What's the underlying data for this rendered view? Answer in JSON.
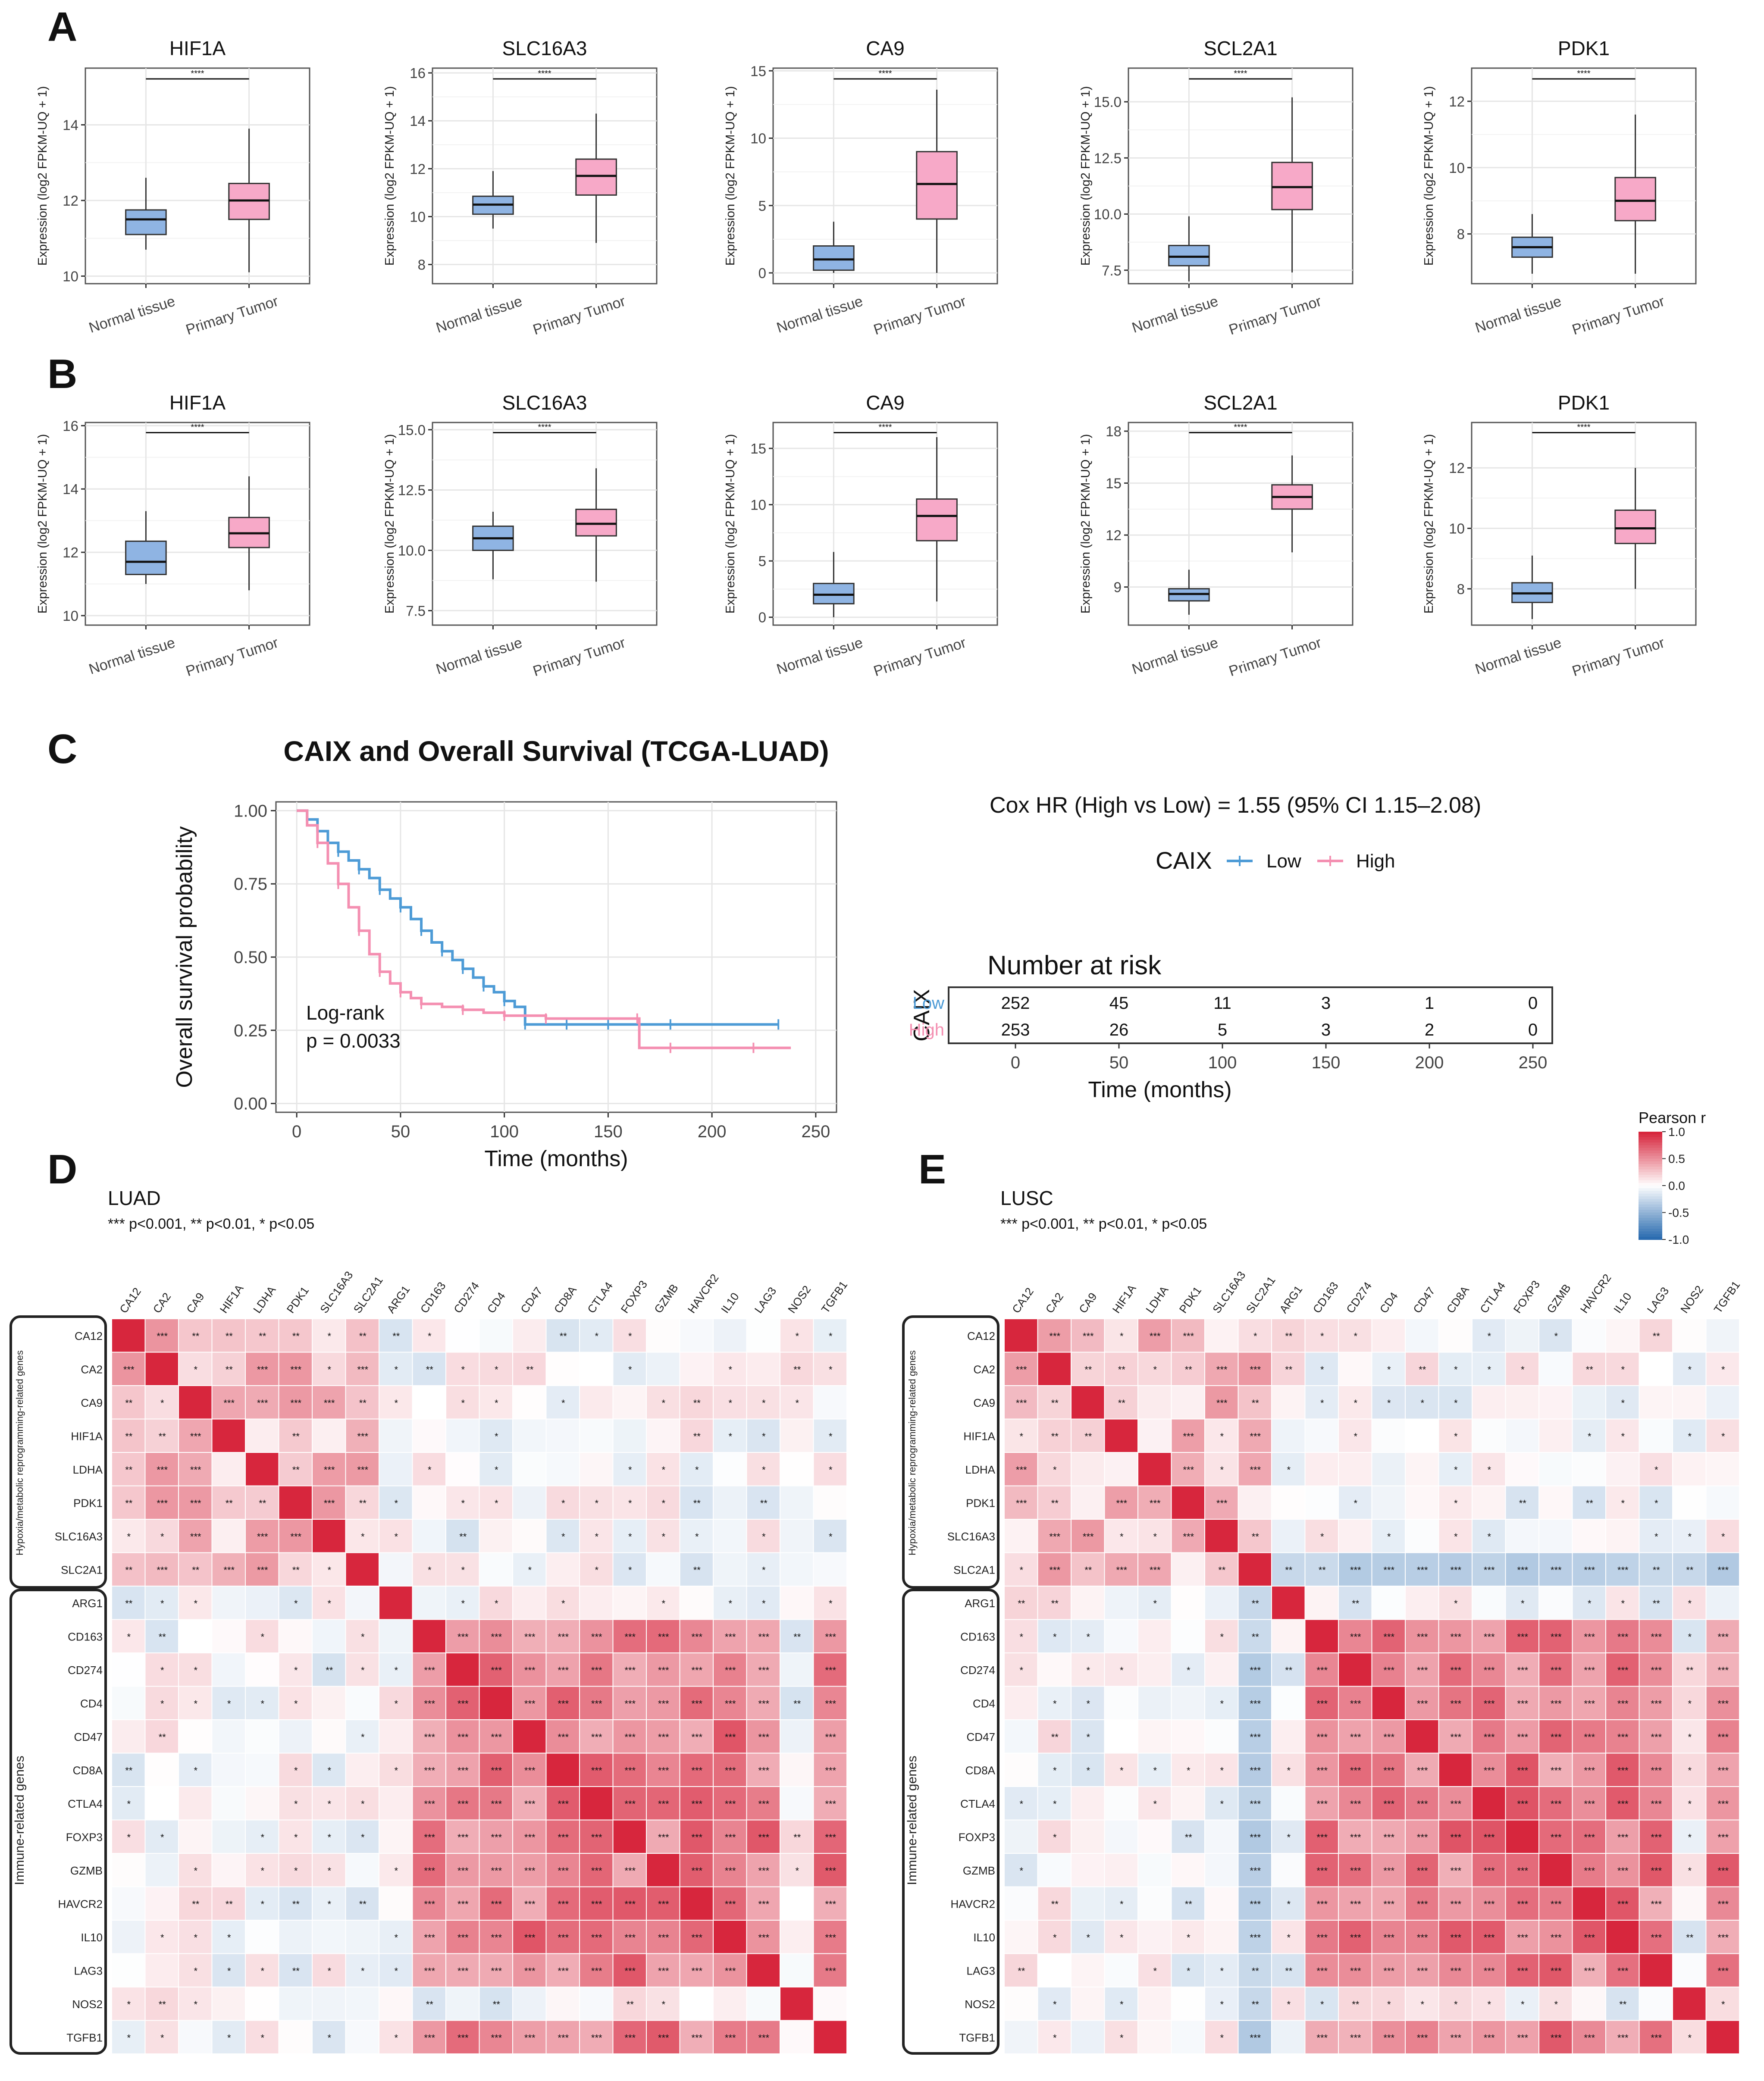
{
  "panel_letters": [
    "A",
    "B",
    "C",
    "D",
    "E"
  ],
  "box_ylabel": "Expression (log2 FPKM-UQ + 1)",
  "box_groups": [
    "Normal tissue",
    "Primary Tumor"
  ],
  "sig_label": "****",
  "colors": {
    "normal": "#8fb4e3",
    "tumor": "#f7a9c8",
    "low": "#4d9bd6",
    "high": "#f48fb1",
    "heat_pos": "#d7263d",
    "heat_neg": "#2b6cb0",
    "grid": "#e6e6e6"
  },
  "survival": {
    "title": "CAIX and Overall Survival (TCGA-LUAD)",
    "ylabel": "Overall survival probability",
    "xlabel": "Time (months)",
    "logrank": "Log-rank",
    "pvalue": "p = 0.0033",
    "cox": "Cox HR (High vs Low) = 1.55 (95% CI 1.15–2.08)",
    "legend_title": "CAIX",
    "legend_low": "Low",
    "legend_high": "High",
    "risk_title": "Number at risk",
    "risk_ylabel": "CAIX",
    "risk_low": [
      252,
      45,
      11,
      3,
      1,
      0
    ],
    "risk_high": [
      253,
      26,
      5,
      3,
      2,
      0
    ],
    "risk_ticks": [
      "0",
      "50",
      "100",
      "150",
      "200",
      "250"
    ]
  },
  "heat": {
    "legend_title": "Pearson r",
    "legend_ticks": [
      "1.0",
      "0.5",
      "0.0",
      "-0.5",
      "-1.0"
    ],
    "group1": "Hypoxia/metabolic reprogramming-related genes",
    "group2": "Immune-related genes",
    "sig_note": "*** p<0.001, ** p<0.01, * p<0.05",
    "luad_title": "LUAD",
    "lusc_title": "LUSC",
    "genes": [
      "CA12",
      "CA2",
      "CA9",
      "HIF1A",
      "LDHA",
      "PDK1",
      "SLC16A3",
      "SLC2A1",
      "ARG1",
      "CD163",
      "CD274",
      "CD4",
      "CD47",
      "CD8A",
      "CTLA4",
      "FOXP3",
      "GZMB",
      "HAVCR2",
      "IL10",
      "LAG3",
      "NOS2",
      "TGFB1"
    ]
  },
  "chart_data": [
    {
      "type": "box",
      "panel": "A",
      "title": "HIF1A",
      "ylabel": "Expression (log2 FPKM-UQ + 1)",
      "ylim": [
        9.8,
        15.5
      ],
      "yticks": [
        10,
        12,
        14
      ],
      "categories": [
        "Normal tissue",
        "Primary Tumor"
      ],
      "boxes": [
        {
          "min": 10.7,
          "q1": 11.1,
          "median": 11.5,
          "q3": 11.75,
          "max": 12.6
        },
        {
          "min": 10.1,
          "q1": 11.5,
          "median": 12.0,
          "q3": 12.45,
          "max": 13.9
        }
      ]
    },
    {
      "type": "box",
      "panel": "A",
      "title": "SLC16A3",
      "ylabel": "Expression (log2 FPKM-UQ + 1)",
      "ylim": [
        7.2,
        16.2
      ],
      "yticks": [
        8,
        10,
        12,
        14,
        16
      ],
      "categories": [
        "Normal tissue",
        "Primary Tumor"
      ],
      "boxes": [
        {
          "min": 9.5,
          "q1": 10.1,
          "median": 10.5,
          "q3": 10.85,
          "max": 11.9
        },
        {
          "min": 8.9,
          "q1": 10.9,
          "median": 11.7,
          "q3": 12.4,
          "max": 14.3
        }
      ]
    },
    {
      "type": "box",
      "panel": "A",
      "title": "CA9",
      "ylabel": "Expression (log2 FPKM-UQ + 1)",
      "ylim": [
        -0.8,
        15.2
      ],
      "yticks": [
        0,
        5,
        10,
        15
      ],
      "categories": [
        "Normal tissue",
        "Primary Tumor"
      ],
      "boxes": [
        {
          "min": 0,
          "q1": 0.2,
          "median": 1.0,
          "q3": 2.0,
          "max": 3.8
        },
        {
          "min": 0,
          "q1": 4.0,
          "median": 6.6,
          "q3": 9.0,
          "max": 13.6
        }
      ]
    },
    {
      "type": "box",
      "panel": "A",
      "title": "SCL2A1",
      "ylabel": "Expression (log2 FPKM-UQ + 1)",
      "ylim": [
        6.9,
        16.5
      ],
      "yticks": [
        7.5,
        10.0,
        12.5,
        15.0
      ],
      "categories": [
        "Normal tissue",
        "Primary Tumor"
      ],
      "boxes": [
        {
          "min": 7.0,
          "q1": 7.7,
          "median": 8.1,
          "q3": 8.6,
          "max": 9.9
        },
        {
          "min": 7.4,
          "q1": 10.2,
          "median": 11.2,
          "q3": 12.3,
          "max": 15.2
        }
      ]
    },
    {
      "type": "box",
      "panel": "A",
      "title": "PDK1",
      "ylabel": "Expression (log2 FPKM-UQ + 1)",
      "ylim": [
        6.5,
        13.0
      ],
      "yticks": [
        8,
        10,
        12
      ],
      "categories": [
        "Normal tissue",
        "Primary Tumor"
      ],
      "boxes": [
        {
          "min": 6.8,
          "q1": 7.3,
          "median": 7.6,
          "q3": 7.9,
          "max": 8.6
        },
        {
          "min": 6.8,
          "q1": 8.4,
          "median": 9.0,
          "q3": 9.7,
          "max": 11.6
        }
      ]
    },
    {
      "type": "box",
      "panel": "B",
      "title": "HIF1A",
      "ylabel": "Expression (log2 FPKM-UQ + 1)",
      "ylim": [
        9.7,
        16.1
      ],
      "yticks": [
        10,
        12,
        14,
        16
      ],
      "categories": [
        "Normal tissue",
        "Primary Tumor"
      ],
      "boxes": [
        {
          "min": 11.0,
          "q1": 11.3,
          "median": 11.7,
          "q3": 12.35,
          "max": 13.3
        },
        {
          "min": 10.8,
          "q1": 12.15,
          "median": 12.6,
          "q3": 13.1,
          "max": 14.4
        }
      ]
    },
    {
      "type": "box",
      "panel": "B",
      "title": "SLC16A3",
      "ylabel": "Expression (log2 FPKM-UQ + 1)",
      "ylim": [
        6.9,
        15.3
      ],
      "yticks": [
        7.5,
        10.0,
        12.5,
        15.0
      ],
      "categories": [
        "Normal tissue",
        "Primary Tumor"
      ],
      "boxes": [
        {
          "min": 8.8,
          "q1": 10.0,
          "median": 10.5,
          "q3": 11.0,
          "max": 11.6
        },
        {
          "min": 8.7,
          "q1": 10.6,
          "median": 11.1,
          "q3": 11.7,
          "max": 13.4
        }
      ]
    },
    {
      "type": "box",
      "panel": "B",
      "title": "CA9",
      "ylabel": "Expression (log2 FPKM-UQ + 1)",
      "ylim": [
        -0.7,
        17.3
      ],
      "yticks": [
        0,
        5,
        10,
        15
      ],
      "categories": [
        "Normal tissue",
        "Primary Tumor"
      ],
      "boxes": [
        {
          "min": 0,
          "q1": 1.2,
          "median": 2.0,
          "q3": 3.0,
          "max": 5.8
        },
        {
          "min": 1.4,
          "q1": 6.8,
          "median": 9.0,
          "q3": 10.5,
          "max": 16.0
        }
      ]
    },
    {
      "type": "box",
      "panel": "B",
      "title": "SCL2A1",
      "ylabel": "Expression (log2 FPKM-UQ + 1)",
      "ylim": [
        6.8,
        18.5
      ],
      "yticks": [
        9,
        12,
        15,
        18
      ],
      "categories": [
        "Normal tissue",
        "Primary Tumor"
      ],
      "boxes": [
        {
          "min": 7.4,
          "q1": 8.2,
          "median": 8.6,
          "q3": 8.9,
          "max": 10.0
        },
        {
          "min": 11.0,
          "q1": 13.5,
          "median": 14.2,
          "q3": 14.9,
          "max": 16.6
        }
      ]
    },
    {
      "type": "box",
      "panel": "B",
      "title": "PDK1",
      "ylabel": "Expression (log2 FPKM-UQ + 1)",
      "ylim": [
        6.8,
        13.5
      ],
      "yticks": [
        8,
        10,
        12
      ],
      "categories": [
        "Normal tissue",
        "Primary Tumor"
      ],
      "boxes": [
        {
          "min": 7.0,
          "q1": 7.55,
          "median": 7.85,
          "q3": 8.2,
          "max": 9.1
        },
        {
          "min": 8.0,
          "q1": 9.5,
          "median": 10.0,
          "q3": 10.6,
          "max": 12.0
        }
      ]
    },
    {
      "type": "line",
      "panel": "C",
      "title": "CAIX and Overall Survival (TCGA-LUAD)",
      "xlabel": "Time (months)",
      "ylabel": "Overall survival probability",
      "xlim": [
        -10,
        260
      ],
      "ylim": [
        -0.03,
        1.03
      ],
      "xticks": [
        0,
        50,
        100,
        150,
        200,
        250
      ],
      "yticks": [
        0,
        0.25,
        0.5,
        0.75,
        1.0
      ],
      "series": [
        {
          "name": "Low",
          "x": [
            0,
            5,
            10,
            15,
            20,
            25,
            30,
            35,
            40,
            45,
            50,
            55,
            60,
            65,
            70,
            75,
            80,
            85,
            90,
            95,
            100,
            105,
            110,
            120,
            130,
            140,
            150,
            165,
            180,
            200,
            232
          ],
          "y": [
            1.0,
            0.97,
            0.93,
            0.89,
            0.86,
            0.83,
            0.8,
            0.77,
            0.73,
            0.7,
            0.67,
            0.63,
            0.59,
            0.55,
            0.52,
            0.49,
            0.46,
            0.43,
            0.4,
            0.38,
            0.35,
            0.33,
            0.27,
            0.27,
            0.27,
            0.27,
            0.27,
            0.27,
            0.27,
            0.27,
            0.27
          ]
        },
        {
          "name": "High",
          "x": [
            0,
            5,
            10,
            15,
            20,
            25,
            30,
            35,
            40,
            45,
            50,
            55,
            60,
            70,
            80,
            90,
            100,
            110,
            120,
            140,
            164,
            165,
            180,
            200,
            220,
            238
          ],
          "y": [
            1.0,
            0.95,
            0.89,
            0.82,
            0.75,
            0.67,
            0.59,
            0.51,
            0.45,
            0.41,
            0.38,
            0.36,
            0.34,
            0.33,
            0.32,
            0.31,
            0.3,
            0.3,
            0.29,
            0.29,
            0.29,
            0.19,
            0.19,
            0.19,
            0.19,
            0.19
          ]
        }
      ]
    },
    {
      "type": "heatmap",
      "panel": "D",
      "title": "LUAD",
      "legend_title": "Pearson r",
      "genes": [
        "CA12",
        "CA2",
        "CA9",
        "HIF1A",
        "LDHA",
        "PDK1",
        "SLC16A3",
        "SLC2A1",
        "ARG1",
        "CD163",
        "CD274",
        "CD4",
        "CD47",
        "CD8A",
        "CTLA4",
        "FOXP3",
        "GZMB",
        "HAVCR2",
        "IL10",
        "LAG3",
        "NOS2",
        "TGFB1"
      ]
    },
    {
      "type": "heatmap",
      "panel": "E",
      "title": "LUSC",
      "legend_title": "Pearson r",
      "genes": [
        "CA12",
        "CA2",
        "CA9",
        "HIF1A",
        "LDHA",
        "PDK1",
        "SLC16A3",
        "SLC2A1",
        "ARG1",
        "CD163",
        "CD274",
        "CD4",
        "CD47",
        "CD8A",
        "CTLA4",
        "FOXP3",
        "GZMB",
        "HAVCR2",
        "IL10",
        "LAG3",
        "NOS2",
        "TGFB1"
      ]
    }
  ]
}
